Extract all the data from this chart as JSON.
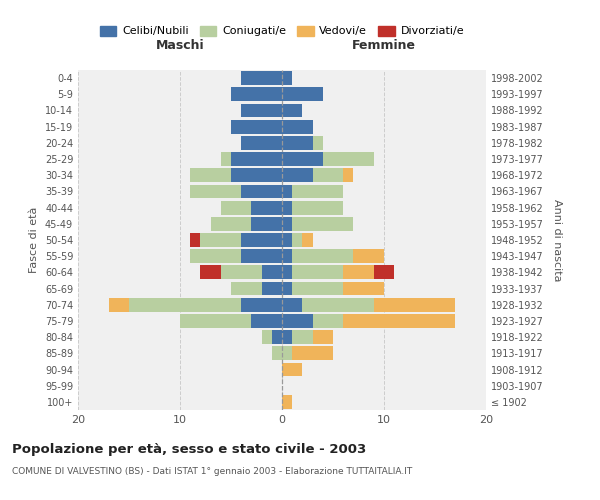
{
  "age_groups": [
    "100+",
    "95-99",
    "90-94",
    "85-89",
    "80-84",
    "75-79",
    "70-74",
    "65-69",
    "60-64",
    "55-59",
    "50-54",
    "45-49",
    "40-44",
    "35-39",
    "30-34",
    "25-29",
    "20-24",
    "15-19",
    "10-14",
    "5-9",
    "0-4"
  ],
  "birth_years": [
    "≤ 1902",
    "1903-1907",
    "1908-1912",
    "1913-1917",
    "1918-1922",
    "1923-1927",
    "1928-1932",
    "1933-1937",
    "1938-1942",
    "1943-1947",
    "1948-1952",
    "1953-1957",
    "1958-1962",
    "1963-1967",
    "1968-1972",
    "1973-1977",
    "1978-1982",
    "1983-1987",
    "1988-1992",
    "1993-1997",
    "1998-2002"
  ],
  "colors": {
    "celibi": "#4472a8",
    "coniugati": "#b8cfa0",
    "vedovi": "#f0b45a",
    "divorziati": "#c0302a"
  },
  "males": {
    "celibi": [
      0,
      0,
      0,
      0,
      1,
      3,
      4,
      2,
      2,
      4,
      4,
      3,
      3,
      4,
      5,
      5,
      4,
      5,
      4,
      5,
      4
    ],
    "coniugati": [
      0,
      0,
      0,
      1,
      1,
      7,
      11,
      3,
      4,
      5,
      4,
      4,
      3,
      5,
      4,
      1,
      0,
      0,
      0,
      0,
      0
    ],
    "vedovi": [
      0,
      0,
      0,
      0,
      0,
      0,
      2,
      0,
      0,
      0,
      0,
      0,
      0,
      0,
      0,
      0,
      0,
      0,
      0,
      0,
      0
    ],
    "divorziati": [
      0,
      0,
      0,
      0,
      0,
      0,
      0,
      0,
      2,
      0,
      1,
      0,
      0,
      0,
      0,
      0,
      0,
      0,
      0,
      0,
      0
    ]
  },
  "females": {
    "celibi": [
      0,
      0,
      0,
      0,
      1,
      3,
      2,
      1,
      1,
      1,
      1,
      1,
      1,
      1,
      3,
      4,
      3,
      3,
      2,
      4,
      1
    ],
    "coniugati": [
      0,
      0,
      0,
      1,
      2,
      3,
      7,
      5,
      5,
      6,
      1,
      6,
      5,
      5,
      3,
      5,
      1,
      0,
      0,
      0,
      0
    ],
    "vedovi": [
      1,
      0,
      2,
      4,
      2,
      11,
      8,
      4,
      3,
      3,
      1,
      0,
      0,
      0,
      1,
      0,
      0,
      0,
      0,
      0,
      0
    ],
    "divorziati": [
      0,
      0,
      0,
      0,
      0,
      0,
      0,
      0,
      2,
      0,
      0,
      0,
      0,
      0,
      0,
      0,
      0,
      0,
      0,
      0,
      0
    ]
  },
  "title": "Popolazione per età, sesso e stato civile - 2003",
  "subtitle": "COMUNE DI VALVESTINO (BS) - Dati ISTAT 1° gennaio 2003 - Elaborazione TUTTAITALIA.IT",
  "xlabel_left": "Maschi",
  "xlabel_right": "Femmine",
  "ylabel_left": "Fasce di età",
  "ylabel_right": "Anni di nascita",
  "xlim": 20,
  "legend_labels": [
    "Celibi/Nubili",
    "Coniugati/e",
    "Vedovi/e",
    "Divorziati/e"
  ],
  "bg_color": "#ffffff",
  "plot_bg_color": "#f0f0f0",
  "grid_color": "#cccccc",
  "bar_height": 0.85
}
